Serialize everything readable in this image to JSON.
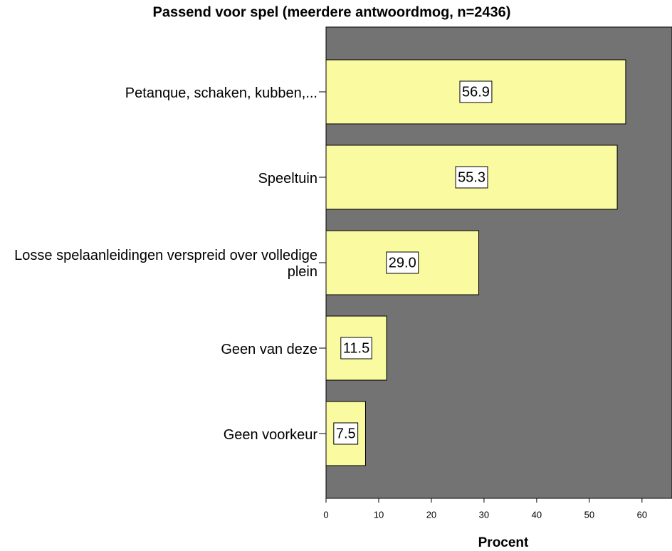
{
  "chart_data": {
    "type": "barh",
    "title": "Passend voor spel (meerdere antwoordmog, n=2436)",
    "categories": [
      "Petanque, schaken, kubben,...",
      "Speeltuin",
      "Losse spelaanleidingen verspreid over volledige plein",
      "Geen van deze",
      "Geen voorkeur"
    ],
    "values": [
      56.9,
      55.3,
      29.0,
      11.5,
      7.5
    ],
    "value_labels": [
      "56.9",
      "55.3",
      "29.0",
      "11.5",
      "7.5"
    ],
    "color": "#fafaa0",
    "xlabel": "Procent",
    "xlim": [
      0,
      65.7
    ],
    "xticks": [
      0,
      10,
      20,
      30,
      40,
      50,
      60
    ]
  }
}
